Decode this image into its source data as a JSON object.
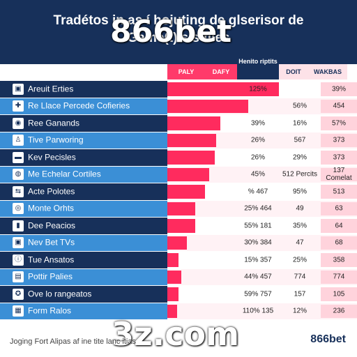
{
  "title_line1": "Tradétos in  as  í hojuting de glserisor de",
  "title_line2": "Game(t)  s  s files",
  "watermark_top": "866bet",
  "watermark_bottom": "3z.com",
  "brand": "866bet",
  "footnote": "Joging Fort Alipas af ine tite lanc itias",
  "chart_data": {
    "type": "table",
    "columns": [
      "PALY",
      "DAFY",
      "Henito riptits",
      "DOIT",
      "WAKBAS"
    ],
    "rows": [
      {
        "label": "Areuit Erties",
        "icon": "▣",
        "bar": 0.8,
        "v1": "125%",
        "v2": "",
        "v3": "39%"
      },
      {
        "label": "Re Llace Percede Cofieries",
        "icon": "✚",
        "bar": 0.58,
        "v1": "",
        "v2": "56%",
        "v3": "454"
      },
      {
        "label": "Ree Ganands",
        "icon": "◉",
        "bar": 0.38,
        "v1": "39%",
        "v2": "16%",
        "v3": "57%"
      },
      {
        "label": "Tive Parworing",
        "icon": "♙",
        "bar": 0.35,
        "v1": "26%",
        "v2": "567",
        "v3": "373"
      },
      {
        "label": "Kev Pecisles",
        "icon": "▬",
        "bar": 0.34,
        "v1": "26%",
        "v2": "29%",
        "v3": "373"
      },
      {
        "label": "Me Echelar Cortiles",
        "icon": "◍",
        "bar": 0.3,
        "v1": "45%",
        "v2": "512 Percits",
        "v3": "137 Comelat"
      },
      {
        "label": "Acte Polotes",
        "icon": "⇆",
        "bar": 0.27,
        "v1": "%  467",
        "v2": "95%",
        "v3": "513"
      },
      {
        "label": "Monte Orhts",
        "icon": "◎",
        "bar": 0.2,
        "v1": "25%  464",
        "v2": "49",
        "v3": "63"
      },
      {
        "label": "Dee Peacios",
        "icon": "▮",
        "bar": 0.2,
        "v1": "55%  181",
        "v2": "35%",
        "v3": "64"
      },
      {
        "label": "Nev Bet TVs",
        "icon": "▣",
        "bar": 0.14,
        "v1": "30%  384",
        "v2": "47",
        "v3": "68"
      },
      {
        "label": "Tue Ansatos",
        "icon": "ⓘ",
        "bar": 0.08,
        "v1": "15%  357",
        "v2": "25%",
        "v3": "358"
      },
      {
        "label": "Pottir Palies",
        "icon": "▤",
        "bar": 0.1,
        "v1": "44%  457",
        "v2": "774",
        "v3": "774"
      },
      {
        "label": "Ove lo rangeatos",
        "icon": "✪",
        "bar": 0.08,
        "v1": "59%  757",
        "v2": "157",
        "v3": "105"
      },
      {
        "label": "Form Ralos",
        "icon": "▦",
        "bar": 0.07,
        "v1": "110%  135",
        "v2": "12%",
        "v3": "236"
      }
    ]
  },
  "colors": {
    "navy": "#17305a",
    "blue": "#3b8fd6",
    "pink": "#ff2b5e",
    "pale_pink": "#ffd3dc"
  }
}
